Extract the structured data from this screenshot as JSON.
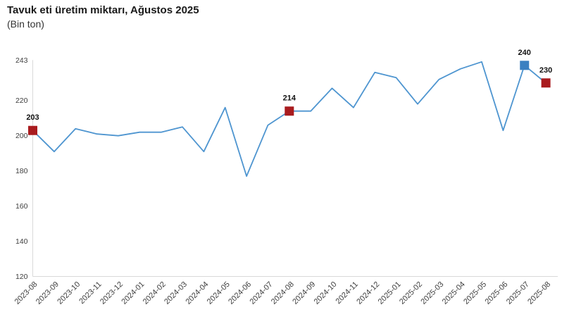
{
  "chart_data": {
    "type": "line",
    "title": "Tavuk eti üretim miktarı, Ağustos 2025",
    "subtitle": "(Bin ton)",
    "x": [
      "2023-08",
      "2023-09",
      "2023-10",
      "2023-11",
      "2023-12",
      "2024-01",
      "2024-02",
      "2024-03",
      "2024-04",
      "2024-05",
      "2024-06",
      "2024-07",
      "2024-08",
      "2024-09",
      "2024-10",
      "2024-11",
      "2024-12",
      "2025-01",
      "2025-02",
      "2025-03",
      "2025-04",
      "2025-05",
      "2025-06",
      "2025-07",
      "2025-08"
    ],
    "values": [
      203,
      191,
      204,
      201,
      200,
      202,
      202,
      205,
      191,
      216,
      177,
      206,
      214,
      214,
      227,
      216,
      236,
      233,
      218,
      232,
      238,
      242,
      203,
      240,
      230
    ],
    "ylim": [
      120,
      243
    ],
    "yticks": [
      120,
      140,
      160,
      180,
      200,
      220,
      243
    ],
    "grid": false,
    "legend": "none",
    "colors": {
      "line": "#4E95D0",
      "marker_red": "#A91B1E",
      "marker_blue": "#3A80C1",
      "axis_line": "#D9D9D9",
      "tick_label": "#3F3F3F",
      "point_label": "#111111"
    },
    "highlights": [
      {
        "x": "2023-08",
        "value": 203,
        "label": "203",
        "color": "#A91B1E"
      },
      {
        "x": "2024-08",
        "value": 214,
        "label": "214",
        "color": "#A91B1E"
      },
      {
        "x": "2025-07",
        "value": 240,
        "label": "240",
        "color": "#3A80C1"
      },
      {
        "x": "2025-08",
        "value": 230,
        "label": "230",
        "color": "#A91B1E"
      }
    ]
  }
}
